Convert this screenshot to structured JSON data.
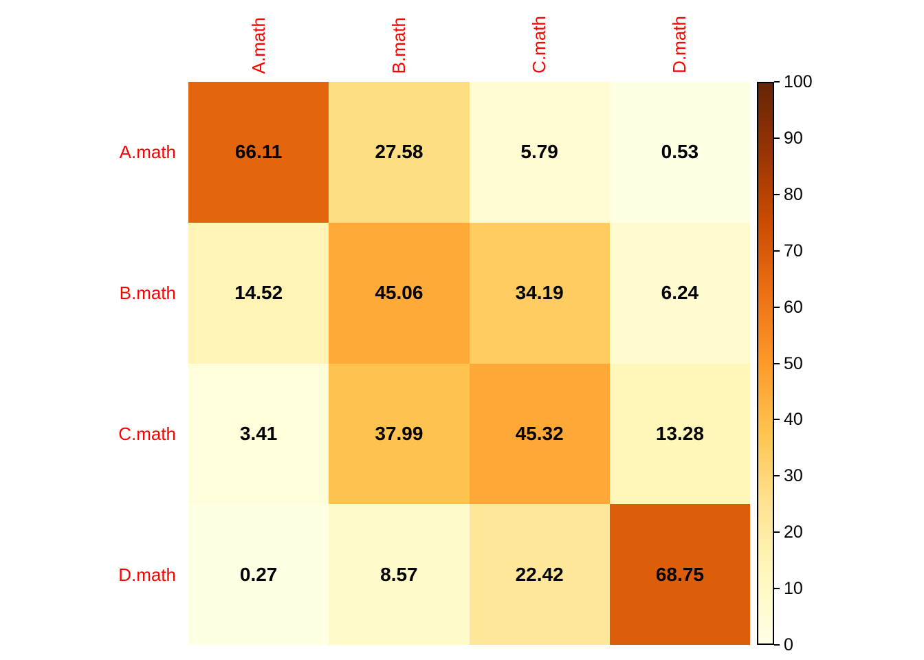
{
  "figure": {
    "background": "#FFFFFF",
    "axis_label_color": "#FF0000",
    "value_text_color": "#000000"
  },
  "chart_data": {
    "type": "heatmap",
    "row_labels": [
      "A.math",
      "B.math",
      "C.math",
      "D.math"
    ],
    "column_labels": [
      "A.math",
      "B.math",
      "C.math",
      "D.math"
    ],
    "values": [
      [
        66.11,
        27.58,
        5.79,
        0.53
      ],
      [
        14.52,
        45.06,
        34.19,
        6.24
      ],
      [
        3.41,
        37.99,
        45.32,
        13.28
      ],
      [
        0.27,
        8.57,
        22.42,
        68.75
      ]
    ],
    "value_decimals": 2,
    "color_scale": {
      "name": "YlOrBr",
      "min": 0,
      "max": 100,
      "stops": [
        "#FFFFE5",
        "#FFF7BC",
        "#FEE391",
        "#FEC44F",
        "#FE9929",
        "#EC7014",
        "#CC4C02",
        "#993404",
        "#662506"
      ]
    },
    "colorbar": {
      "position": "right",
      "ticks": [
        0,
        10,
        20,
        30,
        40,
        50,
        60,
        70,
        80,
        90,
        100
      ],
      "tick_label_color": "#000000",
      "border_color": "#000000"
    },
    "grid_lines": false,
    "legend_position": "right"
  }
}
